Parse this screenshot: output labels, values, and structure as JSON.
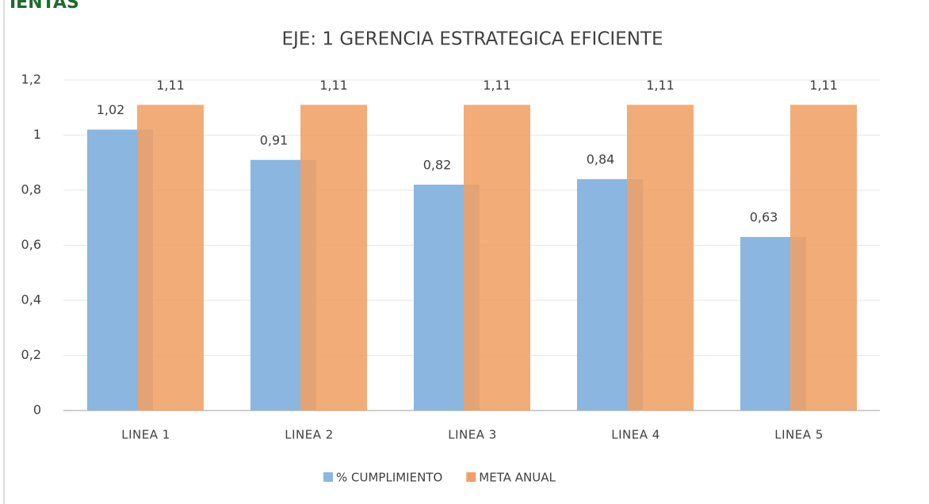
{
  "fragment": "IENTAS",
  "chart_data": {
    "type": "bar",
    "title": "EJE: 1 GERENCIA ESTRATEGICA EFICIENTE",
    "categories": [
      "LINEA 1",
      "LINEA 2",
      "LINEA 3",
      "LINEA 4",
      "LINEA 5"
    ],
    "series": [
      {
        "name": "% CUMPLIMIENTO",
        "color": "#8ab6e0",
        "values": [
          1.02,
          0.91,
          0.82,
          0.84,
          0.63
        ],
        "value_labels": [
          "1,02",
          "0,91",
          "0,82",
          "0,84",
          "0,63"
        ]
      },
      {
        "name": "META ANUAL",
        "color": "#f0a064",
        "values": [
          1.11,
          1.11,
          1.11,
          1.11,
          1.11
        ],
        "value_labels": [
          "1,11",
          "1,11",
          "1,11",
          "1,11",
          "1,11"
        ]
      }
    ],
    "ylim": [
      0,
      1.2
    ],
    "yticks": [
      0,
      {
        "value": 0.2,
        "label": "0,2"
      },
      {
        "value": 0.4,
        "label": "0,4"
      },
      {
        "value": 0.6,
        "label": "0,6"
      },
      {
        "value": 0.8,
        "label": "0,8"
      },
      1,
      {
        "value": 1.2,
        "label": "1,2"
      }
    ],
    "grid": true,
    "legend": "bottom"
  }
}
